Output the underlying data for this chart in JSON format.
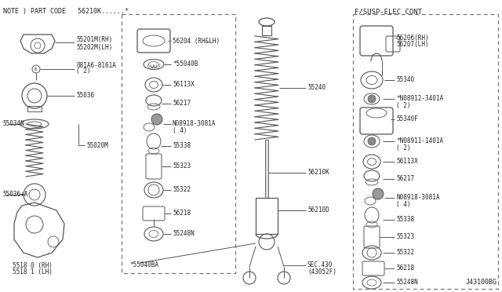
{
  "bg_color": "#ffffff",
  "line_color": "#555555",
  "text_color": "#222222",
  "note_text": "NOTE ) PART CODE   56210K......*",
  "footer_text": "J43100BG",
  "section_label": "F/SUSP-ELEC CONT",
  "fig_w": 6.4,
  "fig_h": 3.72,
  "dpi": 100
}
